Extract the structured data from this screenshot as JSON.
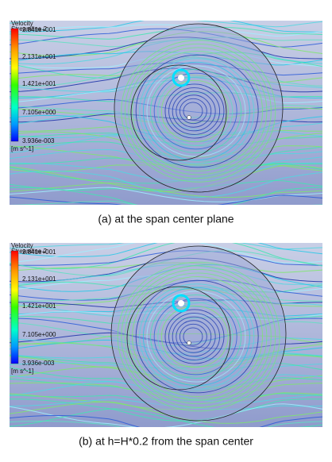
{
  "panels": [
    {
      "legend": {
        "title": "Velocity",
        "subtitle": "Streamline 2",
        "labels": [
          "2.841e+001",
          "2.131e+001",
          "1.421e+001",
          "7.105e+000",
          "3.936e-003"
        ],
        "unit": "[m s^-1]"
      },
      "caption": "(a) at the span center plane"
    },
    {
      "legend": {
        "title": "Velocity",
        "subtitle": "Streamline 2",
        "labels": [
          "2.841e+001",
          "2.131e+001",
          "1.421e+001",
          "7.105e+000",
          "3.936e-003"
        ],
        "unit": "[m s^-1]"
      },
      "caption": "(b) at h=H*0.2 from the span center"
    }
  ]
}
